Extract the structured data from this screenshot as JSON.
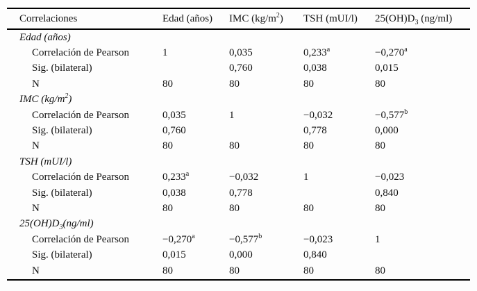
{
  "table": {
    "title_column": "Correlaciones",
    "columns": [
      {
        "key": "edad",
        "label": "Edad (años)"
      },
      {
        "key": "imc",
        "label": "IMC (kg/m^2)"
      },
      {
        "key": "tsh",
        "label": "TSH (mUI/l)"
      },
      {
        "key": "25ohd3",
        "label": "25(OH)D_3 (ng/ml)"
      }
    ],
    "sections": [
      {
        "key": "edad",
        "title": "Edad (años)",
        "rows": [
          {
            "label": "Correlación de Pearson",
            "values": [
              "1",
              "0,035",
              "0,233^a",
              "−0,270^a"
            ]
          },
          {
            "label": "Sig. (bilateral)",
            "values": [
              "",
              "0,760",
              "0,038",
              "0,015"
            ]
          },
          {
            "label": "N",
            "values": [
              "80",
              "80",
              "80",
              "80"
            ]
          }
        ]
      },
      {
        "key": "imc",
        "title": "IMC (kg/m^2)",
        "rows": [
          {
            "label": "Correlación de Pearson",
            "values": [
              "0,035",
              "1",
              "−0,032",
              "−0,577^b"
            ]
          },
          {
            "label": "Sig. (bilateral)",
            "values": [
              "0,760",
              "",
              "0,778",
              "0,000"
            ]
          },
          {
            "label": "N",
            "values": [
              "80",
              "80",
              "80",
              "80"
            ]
          }
        ]
      },
      {
        "key": "tsh",
        "title": "TSH (mUI/l)",
        "rows": [
          {
            "label": "Correlación de Pearson",
            "values": [
              "0,233^a",
              "−0,032",
              "1",
              "−0,023"
            ]
          },
          {
            "label": "Sig. (bilateral)",
            "values": [
              "0,038",
              "0,778",
              "",
              "0,840"
            ]
          },
          {
            "label": "N",
            "values": [
              "80",
              "80",
              "80",
              "80"
            ]
          }
        ]
      },
      {
        "key": "25ohd3",
        "title": "25(OH)D_3(ng/ml)",
        "rows": [
          {
            "label": "Correlación de Pearson",
            "values": [
              "−0,270^a",
              "−0,577^b",
              "−0,023",
              "1"
            ]
          },
          {
            "label": "Sig. (bilateral)",
            "values": [
              "0,015",
              "0,000",
              "0,840",
              ""
            ]
          },
          {
            "label": "N",
            "values": [
              "80",
              "80",
              "80",
              "80"
            ]
          }
        ]
      }
    ]
  }
}
